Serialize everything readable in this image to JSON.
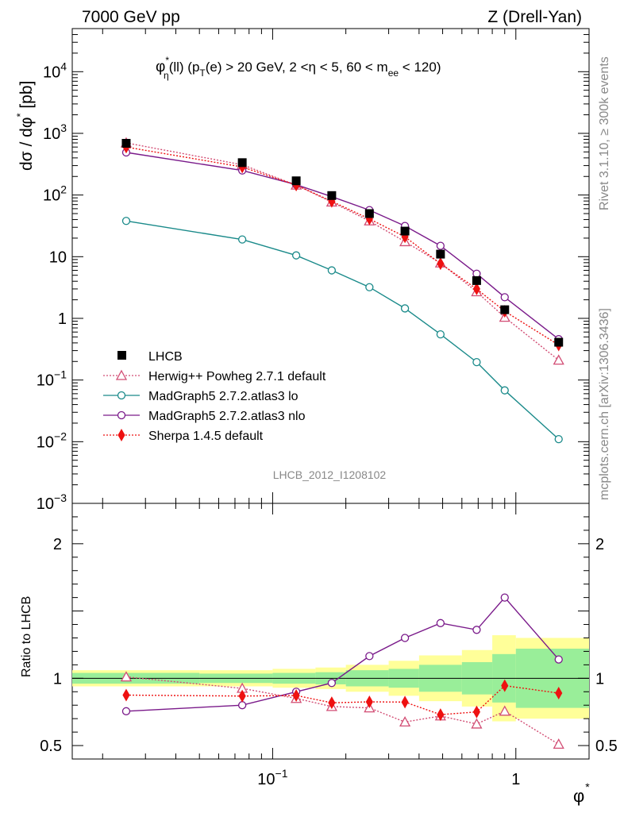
{
  "header": {
    "left": "7000 GeV pp",
    "right": "Z (Drell-Yan)"
  },
  "side_labels": {
    "rivet": "Rivet 3.1.10, ≥ 300k events",
    "source": "mcplots.cern.ch [arXiv:1306.3436]"
  },
  "analysis_id": "LHCB_2012_I1208102",
  "chart_data": {
    "type": "scatter",
    "title": "φ*η(ll) (pT(e) > 20 GeV, 2 <η < 5, 60 < mee < 120)",
    "title_parts": {
      "phi": "φ",
      "sup": "*",
      "sub_eta": "η",
      "mid": "(ll) (p",
      "sub_T": "T",
      "mid2": "(e) > 20 GeV, 2 <η < 5, 60 < m",
      "sub_ee": "ee",
      "end": " < 120)"
    },
    "xlabel": "φ*",
    "xlabel_parts": {
      "base": "φ",
      "sup": "*"
    },
    "ylabel": "dσ / dφ* [pb]",
    "ylabel_parts": {
      "a": "dσ / dφ",
      "sup": "*",
      "b": " [pb]"
    },
    "ratio_ylabel": "Ratio to LHCB",
    "xscale": "log",
    "xlim": [
      0.015,
      2.0
    ],
    "ylim": [
      0.001,
      50000
    ],
    "ratio_ylim": [
      0.4,
      2.3
    ],
    "x_tick_labels": [
      {
        "value": 0.1,
        "base": "10",
        "exp": "−1"
      },
      {
        "value": 1,
        "base": "1",
        "exp": ""
      }
    ],
    "y_tick_labels": [
      {
        "value": 10000,
        "base": "10",
        "exp": "4"
      },
      {
        "value": 1000,
        "base": "10",
        "exp": "3"
      },
      {
        "value": 100,
        "base": "10",
        "exp": "2"
      },
      {
        "value": 10,
        "base": "10",
        "exp": ""
      },
      {
        "value": 1,
        "base": "1",
        "exp": ""
      },
      {
        "value": 0.1,
        "base": "10",
        "exp": "−1"
      },
      {
        "value": 0.01,
        "base": "10",
        "exp": "−2"
      },
      {
        "value": 0.001,
        "base": "10",
        "exp": "−3"
      }
    ],
    "ratio_tick_labels": [
      {
        "value": 2,
        "label": "2"
      },
      {
        "value": 1,
        "label": "1"
      },
      {
        "value": 0.5,
        "label": "0.5"
      }
    ],
    "x": [
      0.025,
      0.075,
      0.125,
      0.175,
      0.25,
      0.35,
      0.49,
      0.69,
      0.9,
      1.5
    ],
    "x_bin_edges": [
      0.0,
      0.05,
      0.1,
      0.15,
      0.2,
      0.3,
      0.4,
      0.6,
      0.8,
      1.0,
      2.0
    ],
    "data": {
      "name": "LHCB",
      "values": [
        690,
        335,
        170,
        98,
        50,
        26,
        11,
        4.1,
        1.38,
        0.41
      ],
      "band_inner": [
        0.04,
        0.035,
        0.04,
        0.045,
        0.06,
        0.07,
        0.1,
        0.12,
        0.18,
        0.22
      ],
      "band_outer": [
        0.06,
        0.06,
        0.07,
        0.08,
        0.1,
        0.13,
        0.17,
        0.21,
        0.32,
        0.3
      ]
    },
    "series": [
      {
        "name": "Herwig++ Powheg 2.7.1 default",
        "color": "#d24d74",
        "marker": "triangle-open",
        "line": "dotted",
        "values": [
          700,
          310,
          145,
          77,
          38,
          17.5,
          7.9,
          2.7,
          1.04,
          0.21
        ],
        "ratio": [
          1.01,
          0.925,
          0.85,
          0.79,
          0.78,
          0.675,
          0.72,
          0.66,
          0.755,
          0.51
        ]
      },
      {
        "name": "MadGraph5 2.7.2.atlas3 lo",
        "color": "#1a8a8a",
        "marker": "circle-open",
        "line": "solid",
        "values": [
          38,
          19,
          10.5,
          6.0,
          3.2,
          1.45,
          0.55,
          0.195,
          0.068,
          0.011
        ],
        "ratio": null
      },
      {
        "name": "MadGraph5 2.7.2.atlas3 nlo",
        "color": "#7a1a8a",
        "marker": "circle-open",
        "line": "solid",
        "values": [
          490,
          250,
          147,
          94,
          57,
          31.5,
          15,
          5.3,
          2.2,
          0.46
        ],
        "ratio": [
          0.755,
          0.8,
          0.9,
          0.965,
          1.165,
          1.3,
          1.41,
          1.36,
          1.6,
          1.14
        ]
      },
      {
        "name": "Sherpa 1.4.5 default",
        "color": "#ee1111",
        "marker": "diamond-filled",
        "line": "dotted",
        "values": [
          600,
          285,
          145,
          79,
          41,
          21,
          7.7,
          3.0,
          1.3,
          0.37
        ],
        "ratio": [
          0.875,
          0.868,
          0.872,
          0.818,
          0.825,
          0.823,
          0.73,
          0.75,
          0.945,
          0.89
        ]
      }
    ],
    "legend_position": "lower-left",
    "legend": [
      {
        "label": "LHCB"
      },
      {
        "label": "Herwig++ Powheg 2.7.1 default"
      },
      {
        "label": "MadGraph5 2.7.2.atlas3 lo"
      },
      {
        "label": "MadGraph5 2.7.2.atlas3 nlo"
      },
      {
        "label": "Sherpa 1.4.5 default"
      }
    ]
  }
}
